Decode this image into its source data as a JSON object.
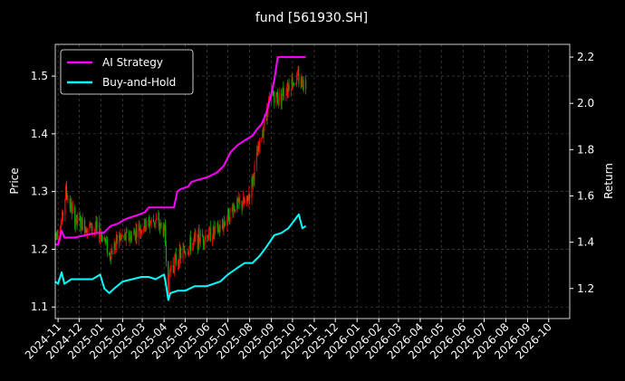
{
  "chart_data": {
    "type": "line",
    "title": "fund [561930.SH]",
    "ylabel_left": "Price",
    "ylabel_right": "Return",
    "x_start": "2024-10-28",
    "x_end": "2026-10-31",
    "x_ticks": [
      "2024-11",
      "2024-12",
      "2025-01",
      "2025-02",
      "2025-03",
      "2025-04",
      "2025-05",
      "2025-06",
      "2025-07",
      "2025-08",
      "2025-09",
      "2025-10",
      "2025-11",
      "2025-12",
      "2026-01",
      "2026-02",
      "2026-03",
      "2026-04",
      "2026-05",
      "2026-06",
      "2026-07",
      "2026-08",
      "2026-09",
      "2026-10"
    ],
    "ylim_left": [
      1.08,
      1.555
    ],
    "yticks_left": [
      "1.1",
      "1.2",
      "1.3",
      "1.4",
      "1.5"
    ],
    "ylim_right": [
      1.07,
      2.255
    ],
    "yticks_right": [
      "1.2",
      "1.4",
      "1.6",
      "1.8",
      "2.0",
      "2.2"
    ],
    "grid": true,
    "legend": "top-left",
    "legend_entries": [
      {
        "name": "AI Strategy",
        "color": "#ff00ff"
      },
      {
        "name": "Buy-and-Hold",
        "color": "#00ffff"
      }
    ],
    "candle_colors": {
      "up": "#ff0000",
      "down": "#00b000"
    },
    "price_anchors": {
      "x": [
        "2024-10-28",
        "2024-11-06",
        "2024-11-12",
        "2024-11-25",
        "2024-12-10",
        "2024-12-26",
        "2025-01-06",
        "2025-01-13",
        "2025-01-27",
        "2025-02-10",
        "2025-02-24",
        "2025-03-10",
        "2025-03-20",
        "2025-04-02",
        "2025-04-07",
        "2025-04-10",
        "2025-04-25",
        "2025-05-15",
        "2025-06-03",
        "2025-06-20",
        "2025-07-10",
        "2025-07-28",
        "2025-08-05",
        "2025-08-15",
        "2025-08-25",
        "2025-09-02",
        "2025-09-10",
        "2025-09-22",
        "2025-09-30",
        "2025-10-10",
        "2025-10-20"
      ],
      "y": [
        1.225,
        1.245,
        1.3,
        1.25,
        1.24,
        1.235,
        1.22,
        1.19,
        1.22,
        1.22,
        1.235,
        1.245,
        1.25,
        1.23,
        1.13,
        1.17,
        1.19,
        1.215,
        1.225,
        1.235,
        1.275,
        1.28,
        1.32,
        1.38,
        1.44,
        1.47,
        1.46,
        1.48,
        1.49,
        1.495,
        1.485
      ]
    },
    "series": [
      {
        "name": "AI Strategy",
        "color": "#ff00ff",
        "x": [
          "2024-10-28",
          "2024-11-01",
          "2024-11-06",
          "2024-11-10",
          "2024-11-25",
          "2024-12-10",
          "2024-12-26",
          "2025-01-05",
          "2025-01-15",
          "2025-01-25",
          "2025-02-05",
          "2025-02-15",
          "2025-02-25",
          "2025-03-05",
          "2025-03-10",
          "2025-03-20",
          "2025-03-25",
          "2025-04-15",
          "2025-04-20",
          "2025-04-25",
          "2025-05-05",
          "2025-05-10",
          "2025-05-20",
          "2025-06-01",
          "2025-06-15",
          "2025-06-25",
          "2025-07-05",
          "2025-07-15",
          "2025-07-25",
          "2025-08-05",
          "2025-08-12",
          "2025-08-18",
          "2025-08-25",
          "2025-08-31",
          "2025-09-05",
          "2025-09-10",
          "2025-09-20",
          "2025-10-01",
          "2025-10-10",
          "2025-10-20"
        ],
        "y": [
          1.39,
          1.39,
          1.45,
          1.42,
          1.42,
          1.43,
          1.44,
          1.44,
          1.47,
          1.48,
          1.5,
          1.51,
          1.52,
          1.53,
          1.55,
          1.55,
          1.55,
          1.55,
          1.62,
          1.63,
          1.64,
          1.66,
          1.67,
          1.68,
          1.7,
          1.73,
          1.79,
          1.82,
          1.84,
          1.86,
          1.89,
          1.91,
          1.96,
          2.03,
          2.1,
          2.2,
          2.2,
          2.2,
          2.2,
          2.2
        ]
      },
      {
        "name": "Buy-and-Hold",
        "color": "#00ffff",
        "x": [
          "2024-10-28",
          "2024-11-01",
          "2024-11-06",
          "2024-11-10",
          "2024-11-20",
          "2024-11-30",
          "2024-12-10",
          "2024-12-20",
          "2024-12-31",
          "2025-01-06",
          "2025-01-13",
          "2025-01-20",
          "2025-02-01",
          "2025-02-15",
          "2025-02-28",
          "2025-03-10",
          "2025-03-20",
          "2025-04-01",
          "2025-04-03",
          "2025-04-07",
          "2025-04-10",
          "2025-04-20",
          "2025-05-01",
          "2025-05-15",
          "2025-06-01",
          "2025-06-20",
          "2025-07-01",
          "2025-07-15",
          "2025-07-25",
          "2025-08-05",
          "2025-08-15",
          "2025-08-25",
          "2025-09-05",
          "2025-09-15",
          "2025-09-25",
          "2025-10-05",
          "2025-10-10",
          "2025-10-15",
          "2025-10-20"
        ],
        "y": [
          1.23,
          1.22,
          1.27,
          1.22,
          1.24,
          1.24,
          1.24,
          1.24,
          1.26,
          1.2,
          1.18,
          1.2,
          1.23,
          1.24,
          1.25,
          1.25,
          1.24,
          1.26,
          1.23,
          1.15,
          1.18,
          1.19,
          1.19,
          1.21,
          1.21,
          1.23,
          1.26,
          1.29,
          1.31,
          1.31,
          1.34,
          1.38,
          1.43,
          1.44,
          1.46,
          1.5,
          1.52,
          1.46,
          1.47
        ]
      }
    ]
  }
}
